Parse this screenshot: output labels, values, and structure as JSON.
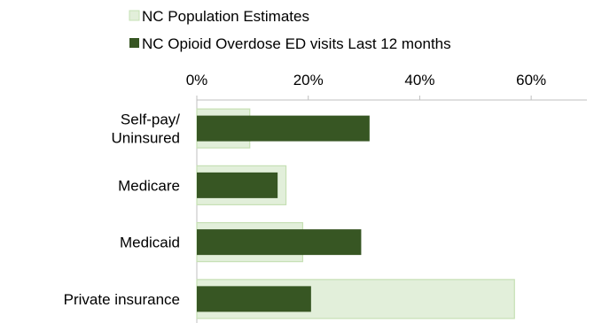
{
  "chart_data": {
    "type": "bar",
    "orientation": "horizontal",
    "categories": [
      "Self-pay/\nUninsured",
      "Medicare",
      "Medicaid",
      "Private insurance"
    ],
    "series": [
      {
        "name": "NC Population Estimates",
        "values": [
          9.5,
          16,
          19,
          57
        ],
        "color": "#e2efda",
        "border_color": "#c6e0b4"
      },
      {
        "name": "NC Opioid Overdose ED visits Last 12 months",
        "values": [
          31,
          14.5,
          29.5,
          20.5
        ],
        "color": "#375623"
      }
    ],
    "x_ticks": [
      "0%",
      "20%",
      "40%",
      "60%"
    ],
    "x_tick_values": [
      0,
      20,
      40,
      60
    ],
    "xlim": [
      0,
      70
    ],
    "axis_position": "top",
    "legend_position": "top",
    "grid": false
  }
}
